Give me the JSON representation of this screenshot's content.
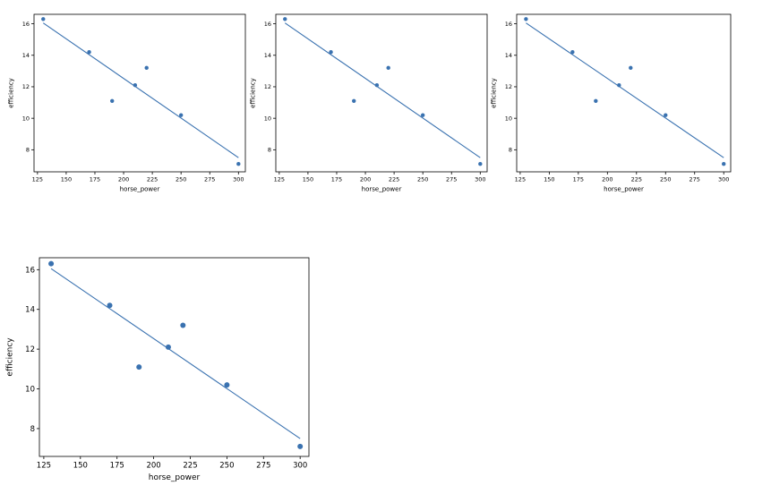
{
  "chart_data": [
    {
      "type": "scatter",
      "xlabel": "horse_power",
      "ylabel": "efficiency",
      "xlim": [
        122,
        306
      ],
      "ylim": [
        6.6,
        16.6
      ],
      "xticks": [
        125,
        150,
        175,
        200,
        225,
        250,
        275,
        300
      ],
      "yticks": [
        8,
        10,
        12,
        14,
        16
      ],
      "x": [
        130,
        170,
        190,
        210,
        220,
        250,
        300
      ],
      "y": [
        16.3,
        14.2,
        11.1,
        12.1,
        13.2,
        10.2,
        7.1
      ],
      "fit_line": {
        "x": [
          130,
          300
        ],
        "y": [
          16.05,
          7.5
        ]
      },
      "color": "#3a72b0"
    },
    {
      "type": "scatter",
      "xlabel": "horse_power",
      "ylabel": "efficiency",
      "xlim": [
        122,
        306
      ],
      "ylim": [
        6.6,
        16.6
      ],
      "xticks": [
        125,
        150,
        175,
        200,
        225,
        250,
        275,
        300
      ],
      "yticks": [
        8,
        10,
        12,
        14,
        16
      ],
      "x": [
        130,
        170,
        190,
        210,
        220,
        250,
        300
      ],
      "y": [
        16.3,
        14.2,
        11.1,
        12.1,
        13.2,
        10.2,
        7.1
      ],
      "fit_line": {
        "x": [
          130,
          300
        ],
        "y": [
          16.05,
          7.5
        ]
      },
      "color": "#3a72b0"
    },
    {
      "type": "scatter",
      "xlabel": "horse_power",
      "ylabel": "efficiency",
      "xlim": [
        122,
        306
      ],
      "ylim": [
        6.6,
        16.6
      ],
      "xticks": [
        125,
        150,
        175,
        200,
        225,
        250,
        275,
        300
      ],
      "yticks": [
        8,
        10,
        12,
        14,
        16
      ],
      "x": [
        130,
        170,
        190,
        210,
        220,
        250,
        300
      ],
      "y": [
        16.3,
        14.2,
        11.1,
        12.1,
        13.2,
        10.2,
        7.1
      ],
      "fit_line": {
        "x": [
          130,
          300
        ],
        "y": [
          16.05,
          7.5
        ]
      },
      "color": "#3a72b0"
    },
    {
      "type": "scatter",
      "xlabel": "horse_power",
      "ylabel": "efficiency",
      "xlim": [
        122,
        306
      ],
      "ylim": [
        6.6,
        16.6
      ],
      "xticks": [
        125,
        150,
        175,
        200,
        225,
        250,
        275,
        300
      ],
      "yticks": [
        8,
        10,
        12,
        14,
        16
      ],
      "x": [
        130,
        170,
        190,
        210,
        220,
        250,
        300
      ],
      "y": [
        16.3,
        14.2,
        11.1,
        12.1,
        13.2,
        10.2,
        7.1
      ],
      "fit_line": {
        "x": [
          130,
          300
        ],
        "y": [
          16.05,
          7.5
        ]
      },
      "color": "#3a72b0"
    }
  ]
}
